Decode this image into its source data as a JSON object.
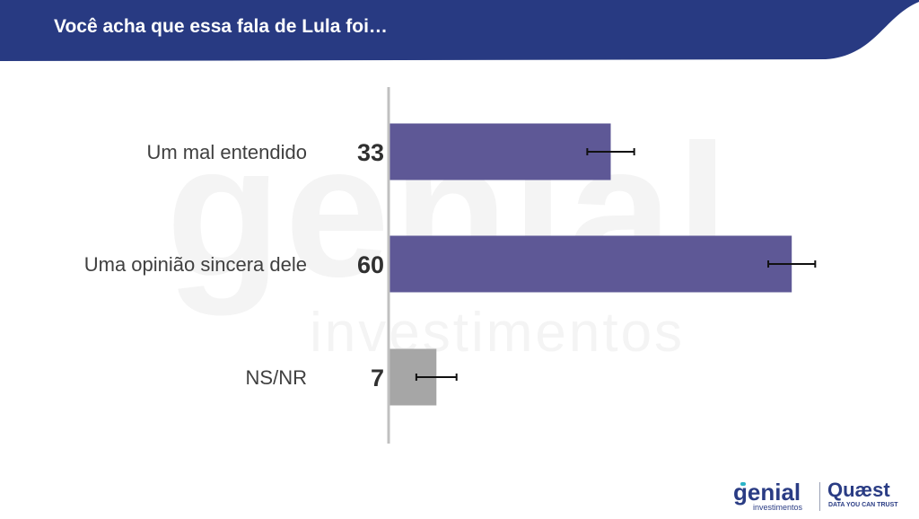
{
  "header": {
    "title": "Você acha que essa fala de Lula foi…"
  },
  "watermark": {
    "brand": "genial",
    "tagline": "investimentos"
  },
  "colors": {
    "header_bg": "#283a82",
    "bar_primary": "#5e5896",
    "bar_other": "#a6a6a6",
    "error_bar": "#111111",
    "axis": "#c0c0c0"
  },
  "chart_data": {
    "type": "bar",
    "orientation": "horizontal",
    "categories": [
      "Um mal entendido",
      "Uma opinião sincera dele",
      "NS/NR"
    ],
    "values": [
      33,
      60,
      7
    ],
    "error_margin": [
      3.5,
      3.5,
      3
    ],
    "value_labels": [
      "33",
      "60",
      "7"
    ],
    "xlim": [
      0,
      70
    ],
    "grid": false,
    "legend": "none"
  },
  "footer": {
    "logo_genial": "genial",
    "logo_genial_sub": "investimentos",
    "logo_quaest": "Quæst",
    "logo_quaest_tagline": "DATA YOU CAN TRUST"
  }
}
